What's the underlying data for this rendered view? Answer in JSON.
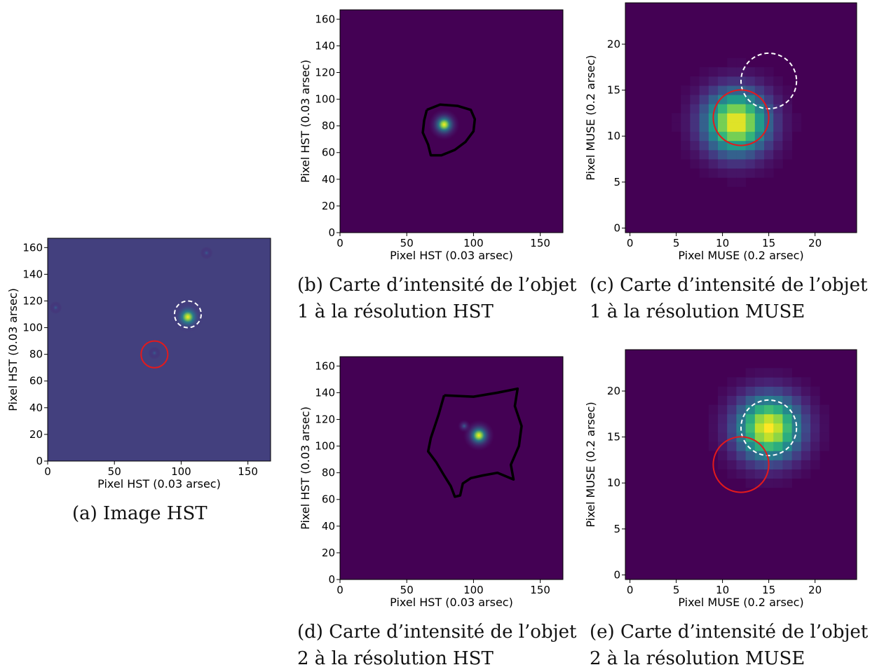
{
  "figure": {
    "panels": [
      {
        "id": "a",
        "caption_line1": "(a) Image HST",
        "caption_line2": "",
        "xlabel": "Pixel HST  (0.03 arsec)",
        "ylabel": "Pixel HST (0.03 arsec)"
      },
      {
        "id": "b",
        "caption_line1": "(b) Carte d’intensité de l’objet",
        "caption_line2": "1 à la résolution HST",
        "xlabel": "Pixel HST  (0.03 arsec)",
        "ylabel": "Pixel HST (0.03 arsec)"
      },
      {
        "id": "c",
        "caption_line1": "(c) Carte d’intensité de l’objet",
        "caption_line2": "1 à la résolution MUSE",
        "xlabel": "Pixel MUSE  (0.2 arsec)",
        "ylabel": "Pixel MUSE (0.2 arsec)"
      },
      {
        "id": "d",
        "caption_line1": "(d) Carte d’intensité de l’objet",
        "caption_line2": "2 à la résolution HST",
        "xlabel": "Pixel HST  (0.03 arsec)",
        "ylabel": "Pixel HST (0.03 arsec)"
      },
      {
        "id": "e",
        "caption_line1": "(e) Carte d’intensité de l’objet",
        "caption_line2": "2 à la résolution MUSE",
        "xlabel": "Pixel MUSE  (0.2 arsec)",
        "ylabel": "Pixel MUSE (0.2 arsec)"
      }
    ]
  },
  "chart_data": [
    {
      "type": "heatmap",
      "id": "a",
      "xlabel": "Pixel HST  (0.03 arsec)",
      "ylabel": "Pixel HST (0.03 arsec)",
      "xlim": [
        0,
        167
      ],
      "ylim": [
        0,
        167
      ],
      "xticks": [
        0,
        50,
        100,
        150
      ],
      "yticks": [
        0,
        20,
        40,
        60,
        80,
        100,
        120,
        140,
        160
      ],
      "colormap": "viridis",
      "background": "#43407e",
      "sources": [
        {
          "x": 105,
          "y": 108,
          "peak": 1.0
        },
        {
          "x": 80,
          "y": 81,
          "peak": 0.25
        },
        {
          "x": 6,
          "y": 115,
          "peak": 0.2
        },
        {
          "x": 119,
          "y": 156,
          "peak": 0.15
        }
      ],
      "circles": [
        {
          "cx": 105,
          "cy": 110,
          "r": 10,
          "color": "#ffffff",
          "style": "dashed"
        },
        {
          "cx": 80,
          "cy": 80,
          "r": 10,
          "color": "#e31a1c",
          "style": "solid"
        }
      ]
    },
    {
      "type": "heatmap",
      "id": "b",
      "xlabel": "Pixel HST  (0.03 arsec)",
      "ylabel": "Pixel HST (0.03 arsec)",
      "xlim": [
        0,
        167
      ],
      "ylim": [
        0,
        167
      ],
      "xticks": [
        0,
        50,
        100,
        150
      ],
      "yticks": [
        0,
        20,
        40,
        60,
        80,
        100,
        120,
        140,
        160
      ],
      "colormap": "viridis",
      "background": "#440154",
      "sources": [
        {
          "x": 78,
          "y": 81,
          "peak": 1.0
        }
      ],
      "contour": [
        [
          65,
          92
        ],
        [
          75,
          96
        ],
        [
          88,
          95
        ],
        [
          98,
          92
        ],
        [
          101,
          85
        ],
        [
          100,
          76
        ],
        [
          94,
          68
        ],
        [
          86,
          62
        ],
        [
          76,
          58
        ],
        [
          68,
          58
        ],
        [
          66,
          66
        ],
        [
          62,
          75
        ],
        [
          63,
          84
        ],
        [
          65,
          92
        ]
      ]
    },
    {
      "type": "heatmap",
      "id": "c",
      "xlabel": "Pixel MUSE  (0.2 arsec)",
      "ylabel": "Pixel MUSE (0.2 arsec)",
      "xlim": [
        -0.5,
        24.5
      ],
      "ylim": [
        -0.5,
        24.5
      ],
      "xticks": [
        0,
        5,
        10,
        15,
        20
      ],
      "yticks": [
        0,
        5,
        10,
        15,
        20
      ],
      "colormap": "viridis",
      "background": "#440154",
      "psf_center": [
        11.5,
        11.5
      ],
      "psf_sigma": 2.3,
      "circles": [
        {
          "cx": 15,
          "cy": 16,
          "r": 3,
          "color": "#ffffff",
          "style": "dashed"
        },
        {
          "cx": 12,
          "cy": 12,
          "r": 3,
          "color": "#e31a1c",
          "style": "solid"
        }
      ]
    },
    {
      "type": "heatmap",
      "id": "d",
      "xlabel": "Pixel HST  (0.03 arsec)",
      "ylabel": "Pixel HST (0.03 arsec)",
      "xlim": [
        0,
        167
      ],
      "ylim": [
        0,
        167
      ],
      "xticks": [
        0,
        50,
        100,
        150
      ],
      "yticks": [
        0,
        20,
        40,
        60,
        80,
        100,
        120,
        140,
        160
      ],
      "colormap": "viridis",
      "background": "#440154",
      "sources": [
        {
          "x": 104,
          "y": 108,
          "peak": 1.0
        },
        {
          "x": 93,
          "y": 115,
          "peak": 0.3
        }
      ],
      "contour": [
        [
          78,
          138
        ],
        [
          100,
          137
        ],
        [
          118,
          140
        ],
        [
          133,
          143
        ],
        [
          131,
          130
        ],
        [
          136,
          115
        ],
        [
          134,
          100
        ],
        [
          128,
          86
        ],
        [
          130,
          75
        ],
        [
          118,
          80
        ],
        [
          107,
          78
        ],
        [
          98,
          76
        ],
        [
          92,
          72
        ],
        [
          90,
          63
        ],
        [
          86,
          62
        ],
        [
          83,
          70
        ],
        [
          78,
          78
        ],
        [
          72,
          88
        ],
        [
          66,
          96
        ],
        [
          68,
          106
        ],
        [
          74,
          124
        ],
        [
          78,
          138
        ]
      ]
    },
    {
      "type": "heatmap",
      "id": "e",
      "xlabel": "Pixel MUSE  (0.2 arsec)",
      "ylabel": "Pixel MUSE (0.2 arsec)",
      "xlim": [
        -0.5,
        24.5
      ],
      "ylim": [
        -0.5,
        24.5
      ],
      "xticks": [
        0,
        5,
        10,
        15,
        20
      ],
      "yticks": [
        0,
        5,
        10,
        15,
        20
      ],
      "colormap": "viridis",
      "background": "#440154",
      "psf_center": [
        15,
        16
      ],
      "psf_sigma": 2.3,
      "circles": [
        {
          "cx": 15,
          "cy": 16,
          "r": 3,
          "color": "#ffffff",
          "style": "dashed"
        },
        {
          "cx": 12,
          "cy": 12,
          "r": 3,
          "color": "#e31a1c",
          "style": "solid"
        }
      ]
    }
  ]
}
